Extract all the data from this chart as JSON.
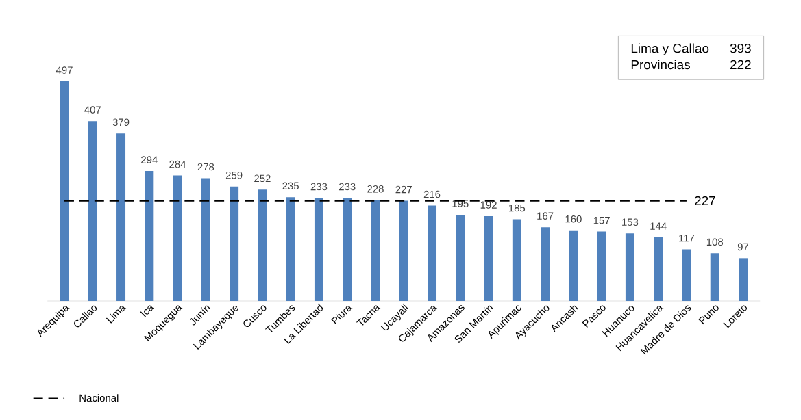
{
  "chart_data": {
    "type": "bar",
    "categories": [
      "Arequipa",
      "Callao",
      "Lima",
      "Ica",
      "Moquegua",
      "Junín",
      "Lambayeque",
      "Cusco",
      "Tumbes",
      "La Libertad",
      "Piura",
      "Tacna",
      "Ucayali",
      "Cajamarca",
      "Amazonas",
      "San Martín",
      "Apurimac",
      "Ayacucho",
      "Ancash",
      "Pasco",
      "Huánuco",
      "Huancavelica",
      "Madre de Dios",
      "Puno",
      "Loreto"
    ],
    "series": [
      {
        "color": "#4f81bd",
        "values": [
          497,
          407,
          379,
          294,
          284,
          278,
          259,
          252,
          235,
          233,
          233,
          228,
          227,
          216,
          195,
          192,
          185,
          167,
          160,
          157,
          153,
          144,
          117,
          108,
          97
        ]
      },
      {
        "type": "line",
        "name": "Nacional",
        "color": "#000000",
        "line_style": "dashed",
        "values": [
          227,
          227,
          227,
          227,
          227,
          227,
          227,
          227,
          227,
          227,
          227,
          227,
          227,
          227,
          227,
          227,
          227,
          227,
          227,
          227,
          227,
          227,
          227,
          null,
          null
        ],
        "value_labels": [
          null,
          null,
          null,
          null,
          null,
          null,
          null,
          null,
          null,
          null,
          null,
          null,
          null,
          null,
          null,
          null,
          null,
          null,
          null,
          null,
          null,
          null,
          "227",
          null,
          null
        ]
      }
    ],
    "data_labels": true,
    "legend": "bottom left",
    "annotations": [
      "Lima y Callao",
      "393",
      "Provincias",
      "222"
    ]
  }
}
